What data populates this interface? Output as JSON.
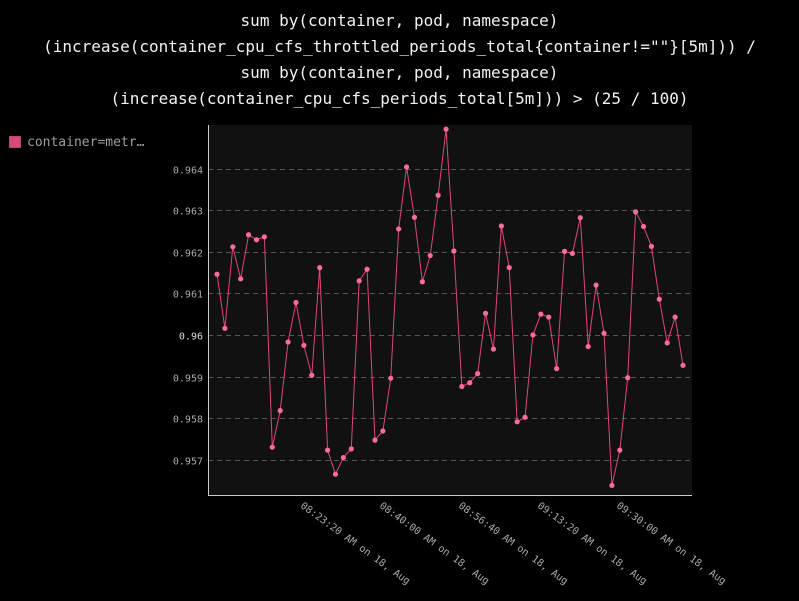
{
  "title_lines": [
    "sum by(container, pod, namespace)",
    "(increase(container_cpu_cfs_throttled_periods_total{container!=\"\"}[5m])) /",
    "sum by(container, pod, namespace)",
    "(increase(container_cpu_cfs_periods_total[5m])) > (25 / 100)"
  ],
  "legend": {
    "label": "container=metr…",
    "color": "#d64b78"
  },
  "colors": {
    "background": "#000000",
    "plot_background": "#111111",
    "grid": "#555555",
    "axis": "#cccccc",
    "tick_label": "#aaaaaa",
    "series": "#ff6b9e",
    "series_line": "#e0457a"
  },
  "chart_data": {
    "type": "line",
    "title": "sum by(container, pod, namespace) (increase(container_cpu_cfs_throttled_periods_total{container!=\"\"}[5m])) / sum by(container, pod, namespace) (increase(container_cpu_cfs_periods_total[5m])) > (25 / 100)",
    "xlabel": "",
    "ylabel": "",
    "grid": true,
    "legend_position": "left",
    "ylim": [
      0.95615,
      0.96505
    ],
    "y_ticks": [
      {
        "value": 0.957,
        "label": "0.957"
      },
      {
        "value": 0.958,
        "label": "0.958"
      },
      {
        "value": 0.959,
        "label": "0.959"
      },
      {
        "value": 0.96,
        "label": "0.96"
      },
      {
        "value": 0.961,
        "label": "0.961"
      },
      {
        "value": 0.962,
        "label": "0.962"
      },
      {
        "value": 0.963,
        "label": "0.963"
      },
      {
        "value": 0.964,
        "label": "0.964"
      }
    ],
    "x_ticks": [
      {
        "label": "08:23:20 AM on 18, Aug",
        "index": 10.5
      },
      {
        "label": "08:40:00 AM on 18, Aug",
        "index": 20.5
      },
      {
        "label": "08:56:40 AM on 18, Aug",
        "index": 30.5
      },
      {
        "label": "09:13:20 AM on 18, Aug",
        "index": 40.5
      },
      {
        "label": "09:30:00 AM on 18, Aug",
        "index": 50.5
      }
    ],
    "series": [
      {
        "name": "container=metr…",
        "values": [
          0.96146,
          0.96016,
          0.96212,
          0.96135,
          0.96241,
          0.96229,
          0.96236,
          0.9573,
          0.95818,
          0.95983,
          0.96078,
          0.95975,
          0.95903,
          0.96162,
          0.95723,
          0.95665,
          0.95705,
          0.95726,
          0.9613,
          0.96158,
          0.95747,
          0.95769,
          0.95896,
          0.96255,
          0.96404,
          0.96283,
          0.96128,
          0.96191,
          0.96336,
          0.96495,
          0.96202,
          0.95876,
          0.95885,
          0.95907,
          0.96052,
          0.95966,
          0.96262,
          0.96162,
          0.95791,
          0.95802,
          0.96,
          0.9605,
          0.96043,
          0.95919,
          0.96201,
          0.96196,
          0.96282,
          0.95972,
          0.9612,
          0.96004,
          0.95638,
          0.95723,
          0.95897,
          0.96296,
          0.96261,
          0.96213,
          0.96086,
          0.95981,
          0.96043,
          0.95927
        ]
      }
    ]
  }
}
